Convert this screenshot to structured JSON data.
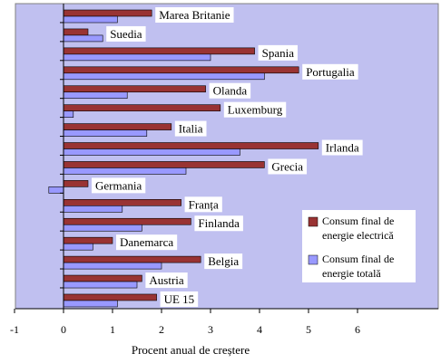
{
  "chart_data": {
    "type": "bar",
    "orientation": "horizontal",
    "title": "",
    "xlabel": "Procent anual de creștere",
    "ylabel": "",
    "xlim": [
      -1,
      7.1
    ],
    "xticks": [
      -1,
      0,
      1,
      2,
      3,
      4,
      5,
      6
    ],
    "grid": false,
    "legend_position": "right",
    "colors": {
      "plot_background": "#C0C0F0",
      "electric": "#993333",
      "total": "#9999FF",
      "label_box": "#FFFFFF"
    },
    "categories": [
      "Marea Britanie",
      "Suedia",
      "Spania",
      "Portugalia",
      "Olanda",
      "Luxemburg",
      "Italia",
      "Irlanda",
      "Grecia",
      "Germania",
      "Franța",
      "Finlanda",
      "Danemarca",
      "Belgia",
      "Austria",
      "UE 15"
    ],
    "series": [
      {
        "name": "Consum final de energie electrică",
        "values": [
          1.8,
          0.5,
          3.9,
          4.8,
          2.9,
          3.2,
          2.2,
          5.2,
          4.1,
          0.5,
          2.4,
          2.6,
          1.0,
          2.8,
          1.6,
          1.9
        ]
      },
      {
        "name": "Consum final de energie totală",
        "values": [
          1.1,
          0.8,
          3.0,
          4.1,
          1.3,
          0.2,
          1.7,
          3.6,
          2.5,
          -0.3,
          1.2,
          1.6,
          0.6,
          2.0,
          1.5,
          1.1
        ]
      }
    ]
  }
}
